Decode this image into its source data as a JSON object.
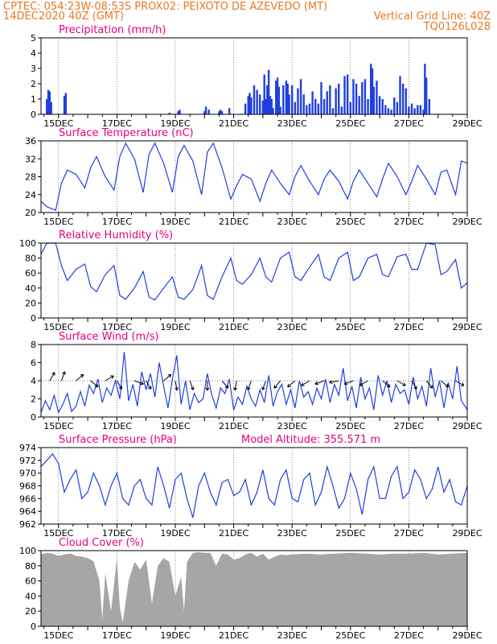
{
  "header": {
    "line1_left": "CPTEC:   054:23W-08:53S   PROX02: PEIXOTO DE AZEVEDO (MT)",
    "line2_left": "14DEC2020 40Z (GMT)",
    "line2_right": "Vertical Grid Line: 40Z",
    "line3_right": "TQ0126L028",
    "color": "#e87722"
  },
  "colors": {
    "title": "#e6007e",
    "line": "#1f3fe0",
    "bars": "#1f3fe0",
    "cloud": "#a6a6a6",
    "grid": "#000000"
  },
  "x_tick_labels": [
    "15DEC",
    "17DEC",
    "19DEC",
    "21DEC",
    "23DEC",
    "25DEC",
    "27DEC",
    "29DEC"
  ],
  "chart_data": [
    {
      "type": "bar",
      "title": "Precipitation (mm/h)",
      "x_range_days": [
        14.4,
        29.0
      ],
      "ylim": [
        0,
        5
      ],
      "yticks": [
        0,
        1,
        2,
        3,
        4,
        5
      ],
      "series": [
        {
          "x": [
            14.6,
            14.65,
            14.7,
            14.75,
            15.2,
            15.25,
            18.8,
            19.1,
            19.15,
            20.0,
            20.05,
            20.15,
            20.5,
            20.55,
            20.6,
            20.85,
            21.4,
            21.5,
            21.55,
            21.6,
            21.7,
            21.8,
            21.9,
            22.0,
            22.05,
            22.1,
            22.15,
            22.2,
            22.25,
            22.3,
            22.35,
            22.45,
            22.5,
            22.55,
            22.6,
            22.7,
            22.8,
            22.85,
            22.9,
            23.0,
            23.1,
            23.2,
            23.3,
            23.4,
            23.5,
            23.6,
            23.7,
            23.8,
            23.9,
            24.0,
            24.1,
            24.2,
            24.3,
            24.4,
            24.5,
            24.6,
            24.7,
            24.8,
            24.9,
            25.0,
            25.1,
            25.2,
            25.3,
            25.4,
            25.5,
            25.6,
            25.7,
            25.75,
            25.8,
            25.9,
            26.0,
            26.1,
            26.2,
            26.3,
            26.4,
            26.5,
            26.6,
            26.7,
            26.8,
            26.9,
            27.0,
            27.1,
            27.2,
            27.3,
            27.4,
            27.5,
            27.55,
            27.6,
            27.7
          ],
          "values": [
            1.0,
            1.6,
            1.5,
            0.8,
            1.2,
            1.4,
            0.1,
            0.2,
            0.3,
            0.2,
            0.5,
            0.3,
            0.2,
            0.3,
            0.2,
            0.4,
            0.7,
            1.2,
            1.4,
            1.1,
            1.9,
            1.6,
            1.3,
            0.9,
            2.6,
            1.0,
            1.9,
            2.9,
            1.2,
            1.0,
            0.4,
            2.2,
            2.4,
            1.8,
            0.5,
            1.9,
            2.2,
            2.0,
            1.3,
            1.9,
            0.8,
            1.7,
            2.3,
            1.3,
            0.6,
            0.7,
            1.5,
            1.0,
            0.7,
            2.1,
            1.0,
            1.5,
            1.9,
            0.4,
            1.7,
            2.0,
            0.5,
            2.5,
            2.6,
            0.8,
            2.3,
            2.0,
            1.2,
            2.1,
            2.3,
            1.0,
            3.3,
            3.0,
            1.8,
            2.2,
            1.2,
            1.0,
            0.6,
            0.4,
            0.3,
            1.1,
            0.8,
            2.5,
            2.0,
            1.7,
            0.5,
            0.7,
            0.4,
            0.6,
            0.6,
            0.3,
            3.3,
            2.4,
            1.0
          ],
          "name": ""
        }
      ]
    },
    {
      "type": "line",
      "title": "Surface Temperature (nC)",
      "x_range_days": [
        14.4,
        29.0
      ],
      "ylim": [
        20,
        36
      ],
      "yticks": [
        20,
        24,
        28,
        32,
        36
      ],
      "series": [
        {
          "x": [
            14.4,
            14.6,
            14.9,
            15.1,
            15.3,
            15.6,
            15.9,
            16.1,
            16.3,
            16.6,
            16.9,
            17.1,
            17.3,
            17.6,
            17.9,
            18.1,
            18.3,
            18.6,
            18.9,
            19.1,
            19.3,
            19.6,
            19.9,
            20.1,
            20.3,
            20.6,
            20.9,
            21.1,
            21.3,
            21.6,
            21.9,
            22.1,
            22.3,
            22.6,
            22.9,
            23.1,
            23.3,
            23.6,
            23.9,
            24.1,
            24.3,
            24.6,
            24.9,
            25.1,
            25.3,
            25.6,
            25.9,
            26.1,
            26.3,
            26.6,
            26.9,
            27.1,
            27.3,
            27.6,
            27.9,
            28.1,
            28.3,
            28.6,
            28.8,
            29.0
          ],
          "values": [
            22.5,
            21.3,
            20.5,
            26.5,
            29.5,
            28.5,
            25.5,
            30.0,
            32.5,
            28.0,
            25.0,
            32.5,
            35.5,
            32.0,
            24.5,
            33.0,
            35.5,
            31.0,
            24.5,
            32.5,
            35.0,
            31.5,
            24.0,
            33.5,
            35.5,
            30.0,
            23.0,
            26.0,
            28.5,
            27.5,
            22.5,
            26.5,
            29.5,
            26.5,
            24.0,
            28.0,
            30.5,
            27.0,
            24.0,
            27.5,
            29.5,
            27.0,
            23.0,
            27.0,
            29.5,
            26.5,
            23.5,
            27.5,
            31.0,
            28.0,
            24.0,
            27.0,
            30.5,
            27.5,
            24.0,
            29.0,
            29.5,
            24.0,
            31.5,
            31.0
          ],
          "name": ""
        }
      ]
    },
    {
      "type": "line",
      "title": "Relative Humidity (%)",
      "x_range_days": [
        14.4,
        29.0
      ],
      "ylim": [
        0,
        100
      ],
      "yticks": [
        0,
        20,
        40,
        60,
        80,
        100
      ],
      "series": [
        {
          "x": [
            14.4,
            14.6,
            14.9,
            15.1,
            15.3,
            15.6,
            15.9,
            16.1,
            16.3,
            16.6,
            16.9,
            17.1,
            17.3,
            17.6,
            17.9,
            18.1,
            18.3,
            18.6,
            18.9,
            19.1,
            19.3,
            19.6,
            19.9,
            20.1,
            20.3,
            20.6,
            20.9,
            21.1,
            21.3,
            21.6,
            21.9,
            22.1,
            22.3,
            22.6,
            22.9,
            23.1,
            23.3,
            23.6,
            23.9,
            24.1,
            24.3,
            24.6,
            24.9,
            25.1,
            25.3,
            25.6,
            25.9,
            26.1,
            26.3,
            26.6,
            26.9,
            27.1,
            27.3,
            27.6,
            27.9,
            28.1,
            28.3,
            28.6,
            28.8,
            29.0
          ],
          "values": [
            85,
            100,
            100,
            70,
            50,
            65,
            72,
            42,
            35,
            58,
            70,
            30,
            25,
            40,
            62,
            28,
            24,
            40,
            55,
            28,
            25,
            38,
            70,
            30,
            25,
            55,
            80,
            50,
            45,
            58,
            80,
            55,
            48,
            80,
            88,
            55,
            50,
            68,
            85,
            55,
            50,
            80,
            88,
            50,
            55,
            80,
            85,
            58,
            55,
            82,
            85,
            65,
            65,
            100,
            98,
            58,
            62,
            78,
            40,
            47
          ],
          "name": ""
        }
      ]
    },
    {
      "type": "line",
      "title": "Surface Wind (m/s)",
      "x_range_days": [
        14.4,
        29.0
      ],
      "ylim": [
        0,
        8
      ],
      "yticks": [
        0,
        2,
        4,
        6,
        8
      ],
      "series": [
        {
          "x": [
            14.4,
            14.55,
            14.7,
            14.85,
            15.0,
            15.15,
            15.3,
            15.45,
            15.6,
            15.75,
            15.9,
            16.05,
            16.2,
            16.35,
            16.5,
            16.65,
            16.8,
            16.95,
            17.1,
            17.25,
            17.4,
            17.55,
            17.7,
            17.85,
            18.0,
            18.15,
            18.3,
            18.45,
            18.6,
            18.75,
            18.9,
            19.05,
            19.2,
            19.35,
            19.5,
            19.65,
            19.8,
            19.95,
            20.1,
            20.25,
            20.4,
            20.55,
            20.7,
            20.85,
            21.0,
            21.15,
            21.3,
            21.45,
            21.6,
            21.75,
            21.9,
            22.05,
            22.2,
            22.35,
            22.5,
            22.65,
            22.8,
            22.95,
            23.1,
            23.25,
            23.4,
            23.55,
            23.7,
            23.85,
            24.0,
            24.15,
            24.3,
            24.45,
            24.6,
            24.75,
            24.9,
            25.05,
            25.2,
            25.35,
            25.5,
            25.65,
            25.8,
            25.95,
            26.1,
            26.25,
            26.4,
            26.55,
            26.7,
            26.85,
            27.0,
            27.15,
            27.3,
            27.45,
            27.6,
            27.75,
            27.9,
            28.05,
            28.2,
            28.35,
            28.5,
            28.65,
            28.8,
            29.0
          ],
          "values": [
            0.5,
            1.8,
            0.8,
            2.4,
            0.5,
            1.4,
            2.6,
            0.6,
            1.2,
            2.8,
            1.2,
            3.5,
            2.6,
            4.2,
            1.6,
            3.2,
            2.4,
            4.0,
            2.0,
            7.2,
            1.8,
            3.6,
            1.2,
            5.0,
            3.0,
            4.8,
            2.2,
            6.0,
            3.4,
            1.0,
            4.2,
            6.8,
            1.4,
            4.0,
            0.8,
            2.6,
            1.6,
            2.0,
            4.8,
            2.4,
            1.0,
            3.2,
            2.6,
            4.2,
            0.8,
            2.2,
            1.4,
            3.4,
            2.0,
            1.2,
            3.0,
            1.6,
            4.6,
            1.2,
            2.8,
            3.6,
            1.4,
            3.0,
            1.0,
            4.0,
            2.2,
            2.8,
            1.4,
            3.2,
            2.0,
            4.2,
            1.6,
            3.6,
            2.4,
            5.4,
            1.8,
            3.4,
            1.0,
            4.4,
            2.0,
            3.2,
            0.8,
            4.6,
            2.4,
            4.0,
            1.6,
            3.6,
            2.6,
            3.0,
            1.4,
            4.4,
            2.0,
            3.4,
            1.2,
            5.4,
            2.2,
            4.0,
            1.0,
            3.8,
            2.0,
            5.6,
            1.8,
            0.8
          ],
          "name": ""
        }
      ],
      "arrows": {
        "level": 4,
        "x": [
          14.7,
          15.1,
          15.6,
          16.1,
          16.6,
          17.0,
          17.6,
          18.0,
          18.6,
          19.0,
          19.5,
          20.1,
          20.6,
          21.1,
          21.6,
          22.1,
          22.6,
          23.1,
          23.6,
          24.1,
          24.6,
          25.1,
          25.6,
          26.1,
          26.6,
          27.1,
          27.6,
          28.1,
          28.6
        ],
        "dir_deg": [
          300,
          290,
          320,
          40,
          330,
          60,
          20,
          60,
          320,
          80,
          70,
          90,
          50,
          100,
          110,
          110,
          130,
          140,
          150,
          160,
          170,
          160,
          150,
          40,
          30,
          60,
          50,
          40,
          30
        ]
      }
    },
    {
      "type": "line",
      "title": "Surface Pressure (hPa)",
      "annotation": "Model Altitude: 355.571  m",
      "x_range_days": [
        14.4,
        29.0
      ],
      "ylim": [
        962,
        974
      ],
      "yticks": [
        962,
        964,
        966,
        968,
        970,
        972,
        974
      ],
      "series": [
        {
          "x": [
            14.4,
            14.6,
            14.8,
            15.0,
            15.2,
            15.4,
            15.6,
            15.8,
            16.0,
            16.2,
            16.4,
            16.6,
            16.8,
            17.0,
            17.2,
            17.4,
            17.6,
            17.8,
            18.0,
            18.2,
            18.4,
            18.6,
            18.8,
            19.0,
            19.2,
            19.4,
            19.6,
            19.8,
            20.0,
            20.2,
            20.4,
            20.6,
            20.8,
            21.0,
            21.2,
            21.4,
            21.6,
            21.8,
            22.0,
            22.2,
            22.4,
            22.6,
            22.8,
            23.0,
            23.2,
            23.4,
            23.6,
            23.8,
            24.0,
            24.2,
            24.4,
            24.6,
            24.8,
            25.0,
            25.2,
            25.4,
            25.6,
            25.8,
            26.0,
            26.2,
            26.4,
            26.6,
            26.8,
            27.0,
            27.2,
            27.4,
            27.6,
            27.8,
            28.0,
            28.2,
            28.4,
            28.6,
            28.8,
            29.0
          ],
          "values": [
            971,
            972,
            973,
            971.5,
            967,
            969,
            970.5,
            966,
            967,
            970,
            968,
            965,
            968,
            970,
            966,
            965,
            968,
            969,
            966,
            965,
            971,
            968,
            964.5,
            969,
            970,
            966,
            963,
            968,
            970,
            967,
            965,
            968.5,
            969,
            966.5,
            967,
            969,
            965,
            967,
            970.5,
            966,
            965,
            969,
            970.5,
            966,
            965.5,
            969,
            970,
            965,
            967,
            971,
            968,
            964.5,
            966,
            970,
            967.5,
            963.5,
            969,
            971,
            966,
            966,
            969.5,
            971,
            966,
            967,
            970.5,
            969,
            966,
            967.5,
            971,
            967,
            969,
            965.5,
            965,
            968
          ],
          "name": ""
        }
      ]
    },
    {
      "type": "area",
      "title": "Cloud Cover (%)",
      "x_range_days": [
        14.4,
        29.0
      ],
      "ylim": [
        0,
        100
      ],
      "yticks": [
        0,
        20,
        40,
        60,
        80,
        100
      ],
      "series": [
        {
          "x": [
            14.4,
            14.6,
            14.8,
            15.0,
            15.2,
            15.4,
            15.6,
            15.8,
            16.0,
            16.2,
            16.4,
            16.5,
            16.6,
            16.8,
            17.0,
            17.1,
            17.2,
            17.4,
            17.6,
            17.8,
            18.0,
            18.2,
            18.4,
            18.6,
            18.8,
            19.0,
            19.2,
            19.3,
            19.4,
            19.6,
            19.8,
            20.0,
            20.2,
            20.4,
            20.6,
            20.8,
            21.0,
            21.2,
            21.4,
            21.6,
            21.8,
            22.0,
            22.2,
            22.4,
            22.6,
            22.8,
            23.0,
            23.5,
            24.0,
            24.5,
            25.0,
            25.5,
            26.0,
            26.5,
            27.0,
            27.5,
            28.0,
            28.5,
            29.0
          ],
          "values": [
            95,
            97,
            96,
            93,
            95,
            96,
            93,
            92,
            90,
            86,
            60,
            10,
            70,
            20,
            90,
            25,
            5,
            60,
            85,
            75,
            88,
            30,
            80,
            90,
            85,
            40,
            65,
            20,
            85,
            97,
            98,
            97,
            97,
            80,
            96,
            95,
            88,
            90,
            95,
            97,
            92,
            96,
            88,
            92,
            95,
            94,
            95,
            96,
            95,
            96,
            97,
            96,
            95,
            96,
            96,
            97,
            95,
            96,
            97
          ],
          "name": ""
        }
      ]
    }
  ]
}
